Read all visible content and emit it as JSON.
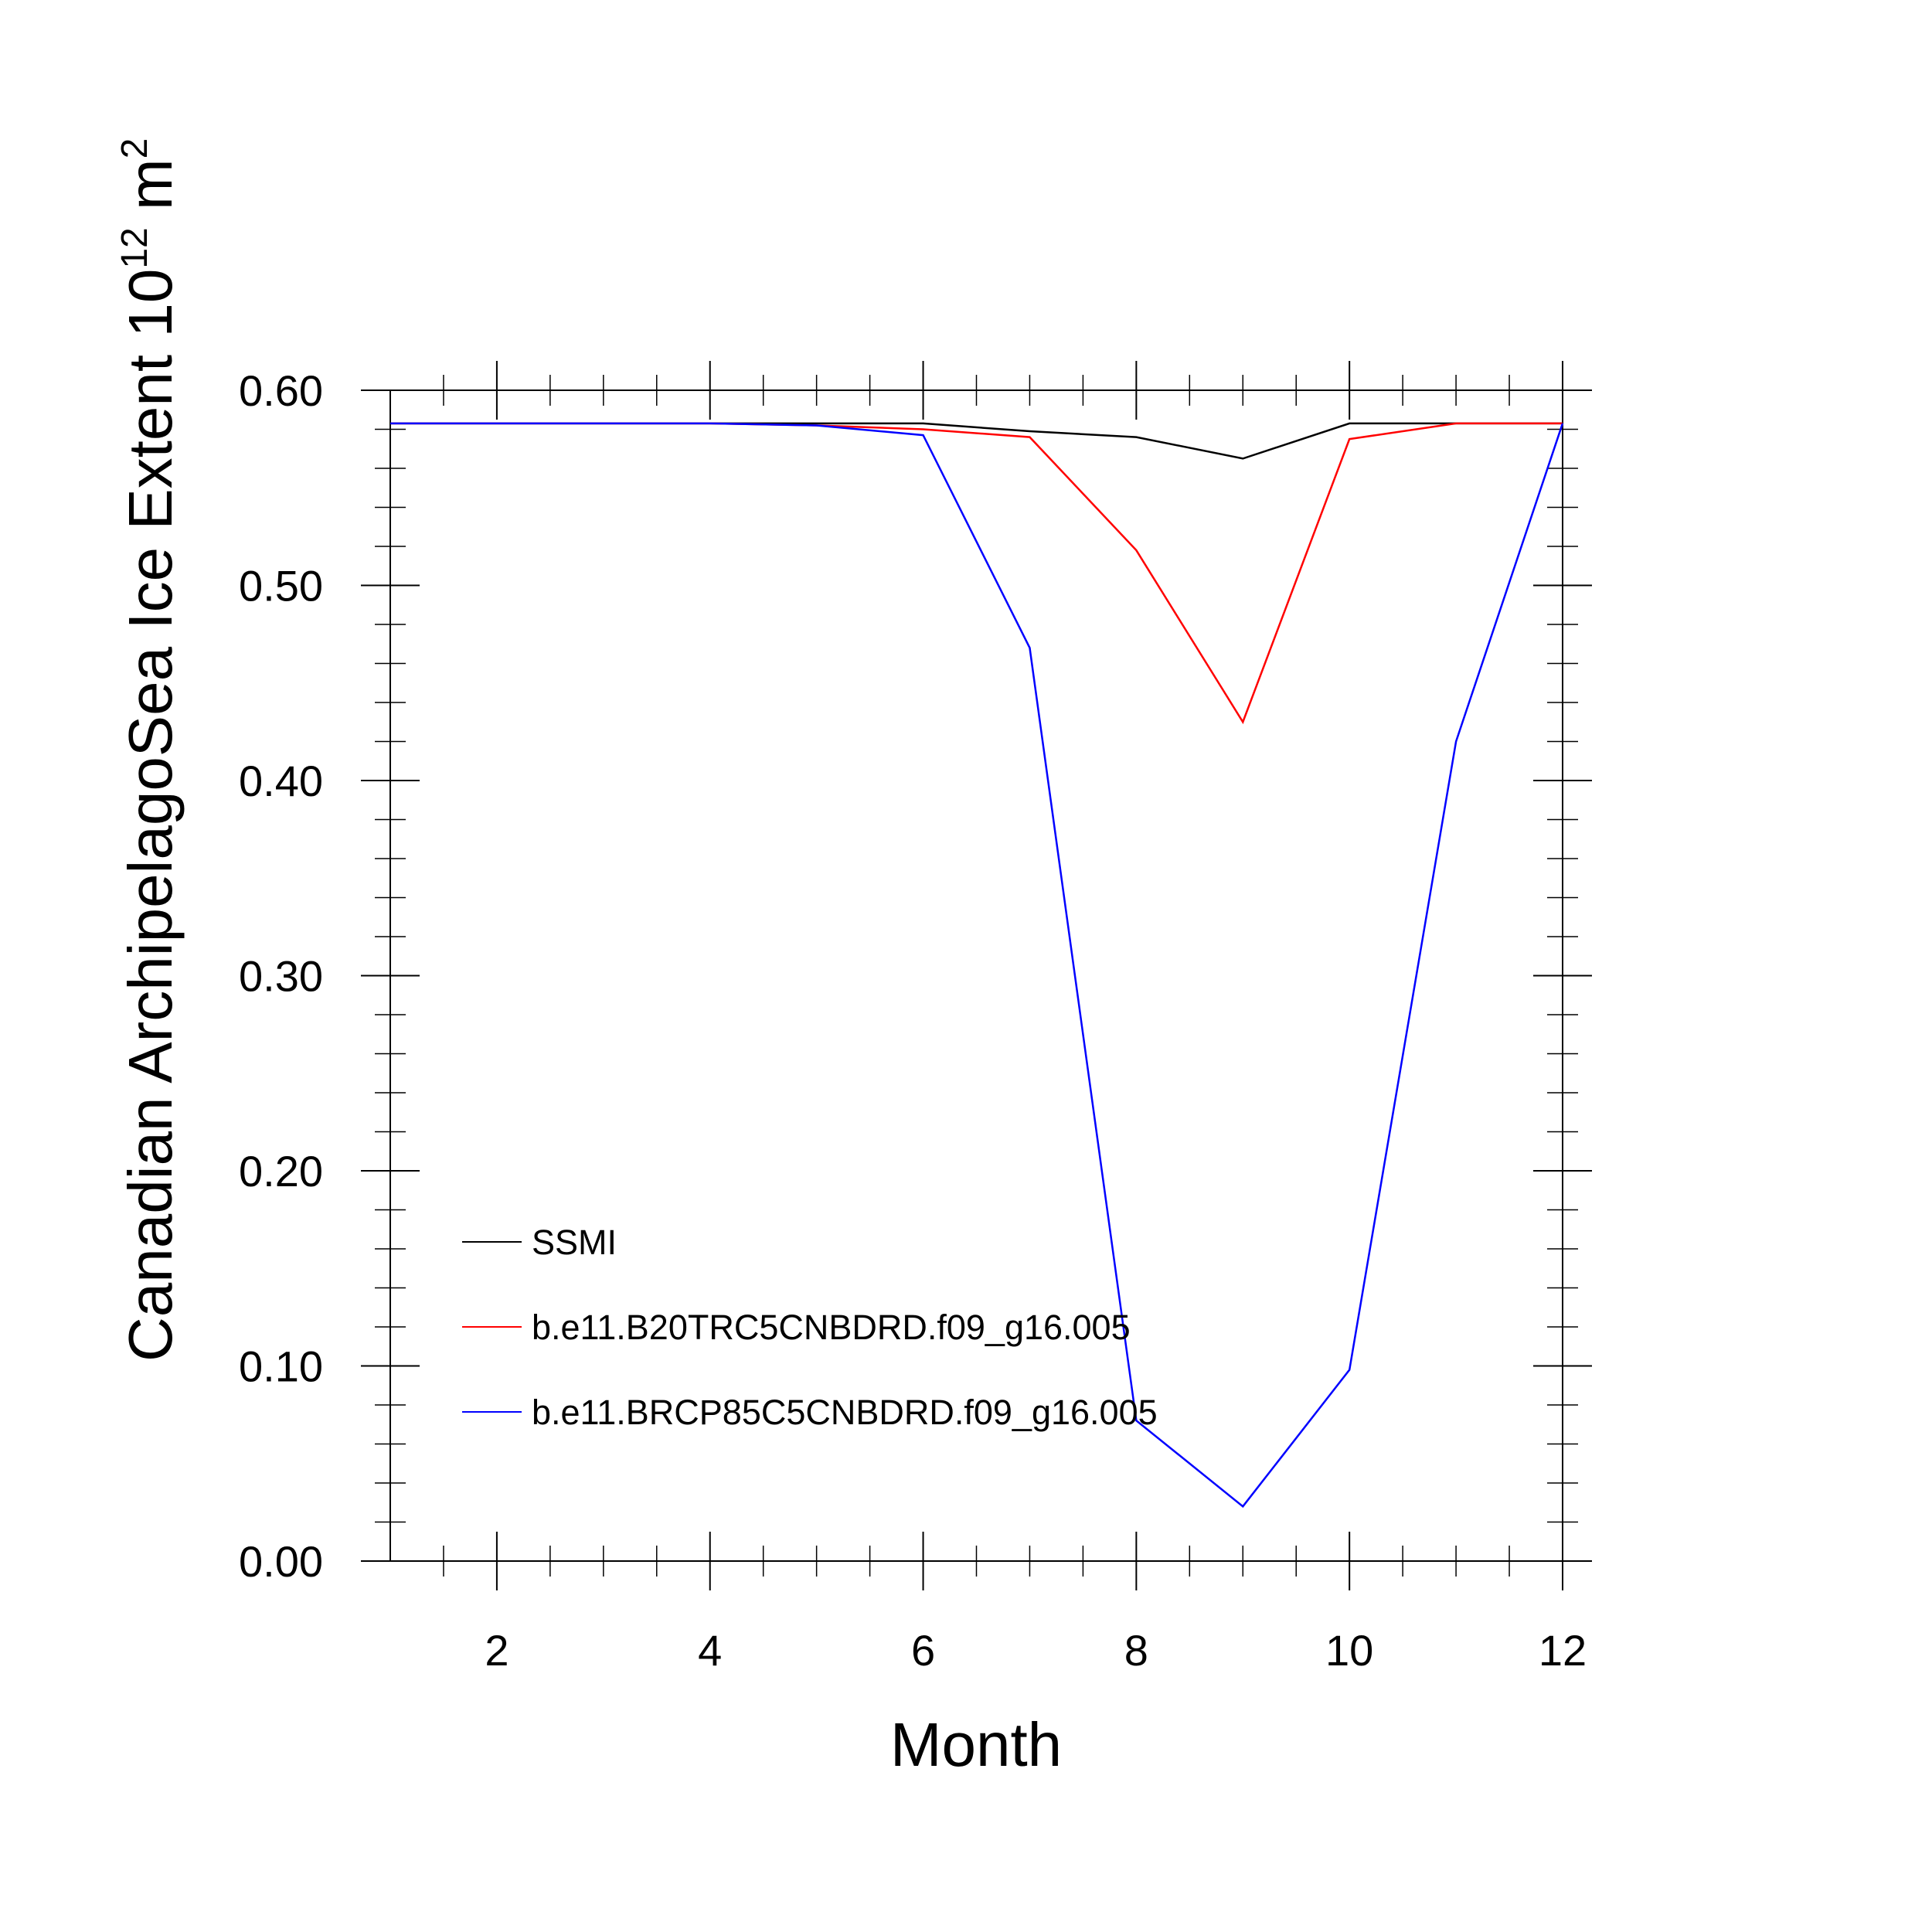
{
  "chart_data": {
    "type": "line",
    "xlabel": "Month",
    "ylabel": "Canadian ArchipelagoSea Ice Extent 10",
    "ylabel_exponent": "12",
    "ylabel_unit": " m",
    "ylabel_unit_exponent": "2",
    "xlim": [
      1,
      12
    ],
    "ylim": [
      0,
      0.6
    ],
    "x_major_ticks": [
      2,
      4,
      6,
      8,
      10,
      12
    ],
    "x_tick_labels": [
      "2",
      "4",
      "6",
      "8",
      "10",
      "12"
    ],
    "y_major_ticks": [
      0,
      0.1,
      0.2,
      0.3,
      0.4,
      0.5,
      0.6
    ],
    "y_tick_labels": [
      "0.00",
      "0.10",
      "0.20",
      "0.30",
      "0.40",
      "0.50",
      "0.60"
    ],
    "grid": false,
    "legend_position": "bottom-left",
    "x": [
      1,
      2,
      3,
      4,
      5,
      6,
      7,
      8,
      9,
      10,
      11,
      12
    ],
    "series": [
      {
        "name": "SSMI",
        "color": "#000000",
        "values": [
          0.583,
          0.583,
          0.583,
          0.583,
          0.583,
          0.583,
          0.579,
          0.576,
          0.565,
          0.583,
          0.583,
          0.583
        ]
      },
      {
        "name": "b.e11.B20TRC5CNBDRD.f09_g16.005",
        "color": "#ff0000",
        "values": [
          0.583,
          0.583,
          0.583,
          0.583,
          0.582,
          0.58,
          0.576,
          0.518,
          0.43,
          0.575,
          0.583,
          0.583
        ]
      },
      {
        "name": "b.e11.BRCP85C5CNBDRD.f09_g16.005",
        "color": "#0000ff",
        "values": [
          0.583,
          0.583,
          0.583,
          0.583,
          0.582,
          0.577,
          0.468,
          0.072,
          0.028,
          0.098,
          0.42,
          0.583
        ]
      }
    ]
  }
}
